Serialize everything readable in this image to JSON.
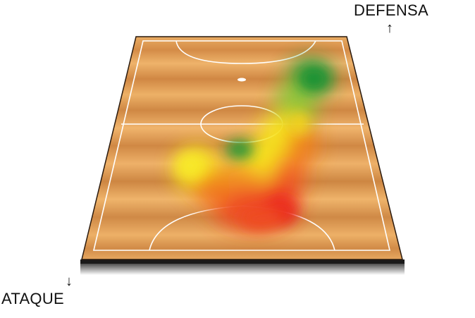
{
  "labels": {
    "defense": "DEFENSA",
    "attack": "ATAQUE"
  },
  "icons": {
    "defense_arrow": "arrow-up-icon",
    "attack_arrow": "arrow-down-icon"
  },
  "colors": {
    "court_wood_light": "#e9ab62",
    "court_wood_dark": "#cf8a45",
    "court_edge": "#2a1a0e",
    "court_lines": "#ffffff",
    "heat_high": "#ef2c1c",
    "heat_mid_high": "#f36a20",
    "heat_mid": "#f7e51f",
    "heat_low": "#1e9a3a"
  }
}
